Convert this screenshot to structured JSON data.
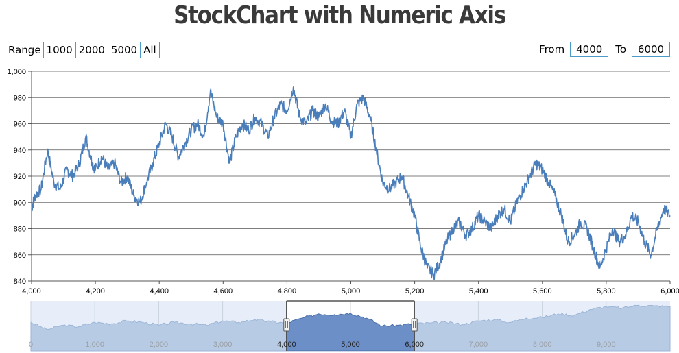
{
  "page": {
    "title": "StockChart with Numeric Axis"
  },
  "range_selector": {
    "label": "Range",
    "buttons": [
      "1000",
      "2000",
      "5000",
      "All"
    ]
  },
  "input_fields": {
    "from_label": "From",
    "from_value": "4000",
    "to_label": "To",
    "to_value": "6000"
  },
  "colors": {
    "line": "#4a7ebb",
    "navigator_fill": "#b8cbe4",
    "navigator_bg": "#e8eef9",
    "navigator_selected_fill": "#6d8fc7",
    "button_border": "#4b9bc9"
  },
  "chart_data": {
    "type": "line",
    "title": "StockChart with Numeric Axis",
    "xlim": [
      4000,
      6000
    ],
    "ylim": [
      840,
      1000
    ],
    "x_ticks": [
      "4,000",
      "4,200",
      "4,400",
      "4,600",
      "4,800",
      "5,000",
      "5,200",
      "5,400",
      "5,600",
      "5,800",
      "6,000"
    ],
    "y_ticks": [
      "840",
      "860",
      "880",
      "900",
      "920",
      "940",
      "960",
      "980",
      "1,000"
    ],
    "grid": true,
    "series": [
      {
        "x": [
          4000,
          4010,
          4030,
          4050,
          4070,
          4090,
          4110,
          4130,
          4150,
          4170,
          4190,
          4200,
          4220,
          4240,
          4260,
          4280,
          4300,
          4320,
          4340,
          4360,
          4380,
          4400,
          4420,
          4440,
          4460,
          4480,
          4500,
          4520,
          4540,
          4560,
          4580,
          4600,
          4620,
          4640,
          4660,
          4680,
          4700,
          4720,
          4740,
          4760,
          4780,
          4800,
          4820,
          4840,
          4860,
          4880,
          4900,
          4920,
          4940,
          4960,
          4980,
          5000,
          5020,
          5040,
          5060,
          5080,
          5100,
          5120,
          5140,
          5160,
          5180,
          5200,
          5220,
          5240,
          5260,
          5280,
          5300,
          5320,
          5340,
          5360,
          5380,
          5400,
          5420,
          5440,
          5460,
          5480,
          5500,
          5520,
          5540,
          5560,
          5580,
          5600,
          5620,
          5640,
          5660,
          5680,
          5700,
          5720,
          5740,
          5760,
          5780,
          5800,
          5820,
          5840,
          5860,
          5880,
          5900,
          5920,
          5940,
          5960,
          5980,
          6000
        ],
        "values": [
          895,
          905,
          910,
          940,
          915,
          910,
          925,
          920,
          930,
          950,
          930,
          925,
          935,
          925,
          930,
          915,
          920,
          905,
          900,
          915,
          930,
          945,
          960,
          950,
          935,
          945,
          955,
          960,
          950,
          985,
          965,
          960,
          930,
          950,
          960,
          955,
          965,
          960,
          950,
          965,
          975,
          970,
          988,
          965,
          960,
          970,
          965,
          975,
          962,
          960,
          970,
          950,
          975,
          980,
          965,
          940,
          915,
          910,
          915,
          920,
          905,
          890,
          865,
          850,
          845,
          855,
          870,
          880,
          885,
          875,
          880,
          890,
          885,
          880,
          890,
          895,
          885,
          900,
          910,
          920,
          930,
          925,
          915,
          905,
          890,
          870,
          875,
          885,
          880,
          865,
          850,
          865,
          880,
          870,
          875,
          890,
          885,
          870,
          860,
          880,
          895,
          890
        ]
      }
    ],
    "navigator": {
      "xlim": [
        0,
        10000
      ],
      "x_ticks": [
        "0",
        "1,000",
        "2,000",
        "3,000",
        "4,000",
        "5,000",
        "6,000",
        "7,000",
        "8,000",
        "9,000"
      ],
      "selected_range": [
        4000,
        6000
      ],
      "ylim": [
        700,
        1050
      ],
      "x": [
        0,
        250,
        500,
        750,
        1000,
        1250,
        1500,
        1750,
        2000,
        2250,
        2500,
        2750,
        3000,
        3250,
        3500,
        3750,
        4000,
        4250,
        4500,
        4750,
        5000,
        5250,
        5500,
        5750,
        6000,
        6250,
        6500,
        6750,
        7000,
        7250,
        7500,
        7750,
        8000,
        8250,
        8500,
        8750,
        9000,
        9250,
        9500,
        9750,
        10000
      ],
      "values": [
        900,
        850,
        880,
        870,
        900,
        890,
        910,
        900,
        880,
        900,
        890,
        880,
        910,
        900,
        920,
        905,
        895,
        930,
        960,
        955,
        965,
        930,
        875,
        880,
        890,
        895,
        900,
        885,
        910,
        920,
        900,
        930,
        935,
        960,
        950,
        990,
        1010,
        1000,
        1020,
        1015,
        1010
      ]
    }
  }
}
